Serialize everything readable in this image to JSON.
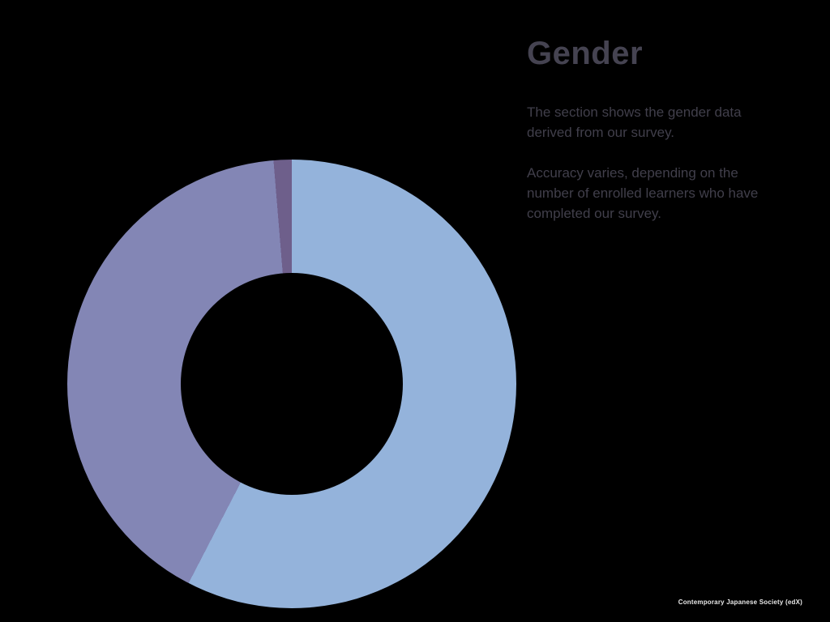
{
  "page": {
    "background_color": "#000000"
  },
  "title": "Gender",
  "description": {
    "para1": "The section shows the gender data derived from our survey.",
    "para2": "Accuracy varies, depending on the number of enrolled learners who have completed our survey."
  },
  "footer": {
    "credit": "Contemporary Japanese Society (edX)"
  },
  "chart_data": {
    "type": "pie",
    "subtype": "donut",
    "title": "Gender",
    "legend": "none",
    "labels_visible": false,
    "start_angle_deg": 0,
    "direction": "clockwise",
    "inner_radius_ratio": 0.4946,
    "segments": [
      {
        "name": "segment-light-blue",
        "percent": 57.6,
        "color": "#94b3db"
      },
      {
        "name": "segment-purple",
        "percent": 41.1,
        "color": "#8386b5"
      },
      {
        "name": "segment-dark-purple",
        "percent": 1.3,
        "color": "#6e5f8b"
      }
    ]
  }
}
